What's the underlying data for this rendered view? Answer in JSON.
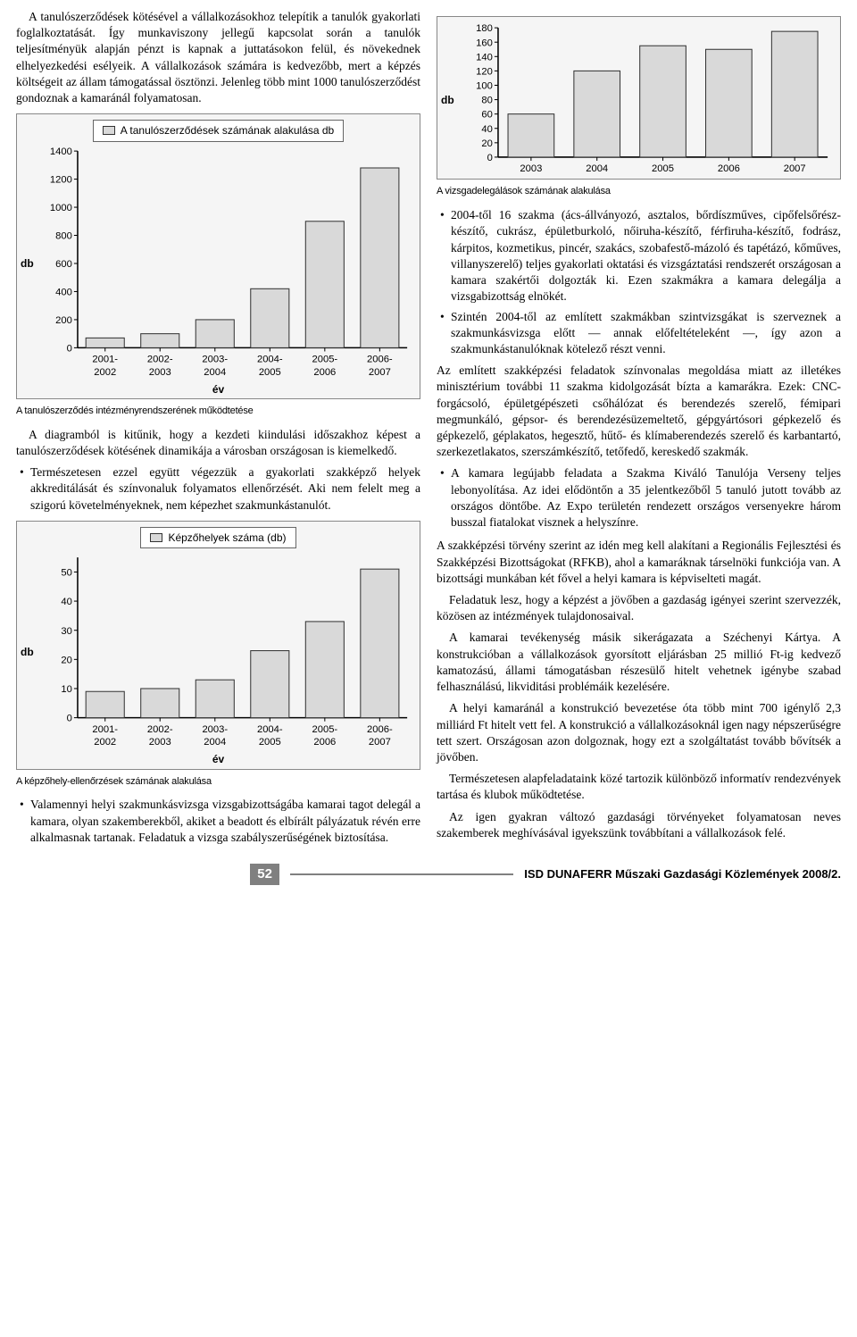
{
  "left_col": {
    "intro_para": "A tanulószerződések kötésével a vállalkozásokhoz telepítik a tanulók gyakorlati foglalkoztatását. Így munkaviszony jellegű kapcsolat során a tanulók teljesítményük alapján pénzt is kapnak a juttatásokon felül, és növekednek elhelyezkedési esélyeik. A vállalkozások számára is kedvezőbb, mert a képzés költségeit az állam támogatással ösztönzi. Jelenleg több mint 1000 tanulószerződést gondoznak a kamaránál folyamatosan.",
    "chart1": {
      "type": "bar",
      "legend_label": "A tanulószerződések számának alakulása db",
      "categories": [
        "2001-2002",
        "2002-2003",
        "2003-2004",
        "2004-2005",
        "2005-2006",
        "2006-2007"
      ],
      "values": [
        70,
        100,
        200,
        420,
        900,
        1280
      ],
      "ymax": 1400,
      "ytick_step": 200,
      "bar_color": "#d9d9d9",
      "bar_border": "#333333",
      "plot_bg": "#f5f5f5",
      "xlabel": "év",
      "ylabel": "db"
    },
    "caption1": "A tanulószerződés intézményrendszerének működtetése",
    "para2": "A diagramból is kitűnik, hogy a kezdeti kiindulási időszakhoz képest a tanulószerződések kötésének dinamikája a városban országosan is kiemelkedő.",
    "bullet1": "Természetesen ezzel együtt végezzük a gyakorlati szakképző helyek akkreditálását és színvonaluk folyamatos ellenőrzését. Aki nem felelt meg a szigorú követelményeknek, nem képezhet szakmunkástanulót.",
    "chart2": {
      "type": "bar",
      "legend_label": "Képzőhelyek száma (db)",
      "categories": [
        "2001-2002",
        "2002-2003",
        "2003-2004",
        "2004-2005",
        "2005-2006",
        "2006-2007"
      ],
      "values": [
        9,
        10,
        13,
        23,
        33,
        51
      ],
      "ymax": 55,
      "ytick_step": 10,
      "bar_color": "#d9d9d9",
      "bar_border": "#333333",
      "plot_bg": "#f5f5f5",
      "xlabel": "év",
      "ylabel": "db"
    },
    "caption2": "A képzőhely-ellenőrzések számának alakulása",
    "bullet2": "Valamennyi helyi szakmunkásvizsga vizsgabizottságába kamarai tagot delegál a kamara, olyan szakemberekből, akiket a beadott és elbírált pályázatuk révén erre alkalmasnak tartanak. Feladatuk a vizsga szabályszerűségének biztosítása."
  },
  "right_col": {
    "chart3": {
      "type": "bar",
      "categories": [
        "2003",
        "2004",
        "2005",
        "2006",
        "2007"
      ],
      "values": [
        60,
        120,
        155,
        150,
        175
      ],
      "ymax": 180,
      "ytick_step": 20,
      "bar_color": "#d9d9d9",
      "bar_border": "#333333",
      "plot_bg": "#f5f5f5",
      "ylabel": "db"
    },
    "caption3": "A vizsgadelegálások számának alakulása",
    "bullet_r1": "2004-től 16 szakma (ács-állványozó, asztalos, bőrdíszműves, cipőfelsőrész-készítő, cukrász, épületburkoló, nőiruha-készítő, férfiruha-készítő, fodrász, kárpitos, kozmetikus, pincér, szakács, szobafestő-mázoló és tapétázó, kőműves, villanyszerelő) teljes gyakorlati oktatási és vizsgáztatási rendszerét országosan a kamara szakértői dolgozták ki. Ezen szakmákra a kamara delegálja a vizsgabizottság elnökét.",
    "bullet_r2": "Szintén 2004-től az említett szakmákban szintvizsgákat is szerveznek a szakmunkásvizsga előtt — annak előfeltételeként —, így azon a szakmunkástanulóknak kötelező részt venni.",
    "para_r1": "Az említett szakképzési feladatok színvonalas megoldása miatt az illetékes minisztérium további 11 szakma kidolgozását bízta a kamarákra. Ezek: CNC-forgácsoló, épületgépészeti csőhálózat és berendezés szerelő, fémipari megmunkáló, gépsor- és berendezésüzemeltető, gépgyártósori gépkezelő és gépkezelő, géplakatos, hegesztő, hűtő- és klímaberendezés szerelő és karbantartó, szerkezetlakatos, szerszámkészítő, tetőfedő, kereskedő szakmák.",
    "bullet_r3": "A kamara legújabb feladata a Szakma Kiváló Tanulója Verseny teljes lebonyolítása. Az idei elődöntőn a 35 jelentkezőből 5 tanuló jutott tovább az országos döntőbe. Az Expo területén rendezett országos versenyekre három busszal fiatalokat visznek a helyszínre.",
    "para_r2": "A szakképzési törvény szerint az idén meg kell alakítani a Regionális Fejlesztési és Szakképzési Bizottságokat (RFKB), ahol a kamaráknak társelnöki funkciója van. A bizottsági munkában két fővel a helyi kamara is képviselteti magát.",
    "para_r3": "Feladatuk lesz, hogy a képzést a jövőben a gazdaság igényei szerint szervezzék, közösen az intézmények tulajdonosaival.",
    "para_r4": "A kamarai tevékenység másik sikerágazata a Széchenyi Kártya. A konstrukcióban a vállalkozások gyorsított eljárásban 25 millió Ft-ig kedvező kamatozású, állami támogatásban részesülő hitelt vehetnek igénybe szabad felhasználású, likviditási problémáik kezelésére.",
    "para_r5": "A helyi kamaránál a konstrukció bevezetése óta több mint 700 igénylő 2,3 milliárd Ft hitelt vett fel. A konstrukció a vállalkozásoknál igen nagy népszerűségre tett szert. Országosan azon dolgoznak, hogy ezt a szolgáltatást tovább bővítsék a jövőben.",
    "para_r6": "Természetesen alapfeladataink közé tartozik különböző informatív rendezvények tartása és klubok működtetése.",
    "para_r7": "Az igen gyakran változó gazdasági törvényeket folyamatosan neves szakemberek meghívásával igyekszünk továbbítani a vállalkozások felé."
  },
  "footer": {
    "page_number": "52",
    "publication": "ISD DUNAFERR Műszaki Gazdasági Közlemények 2008/2."
  }
}
